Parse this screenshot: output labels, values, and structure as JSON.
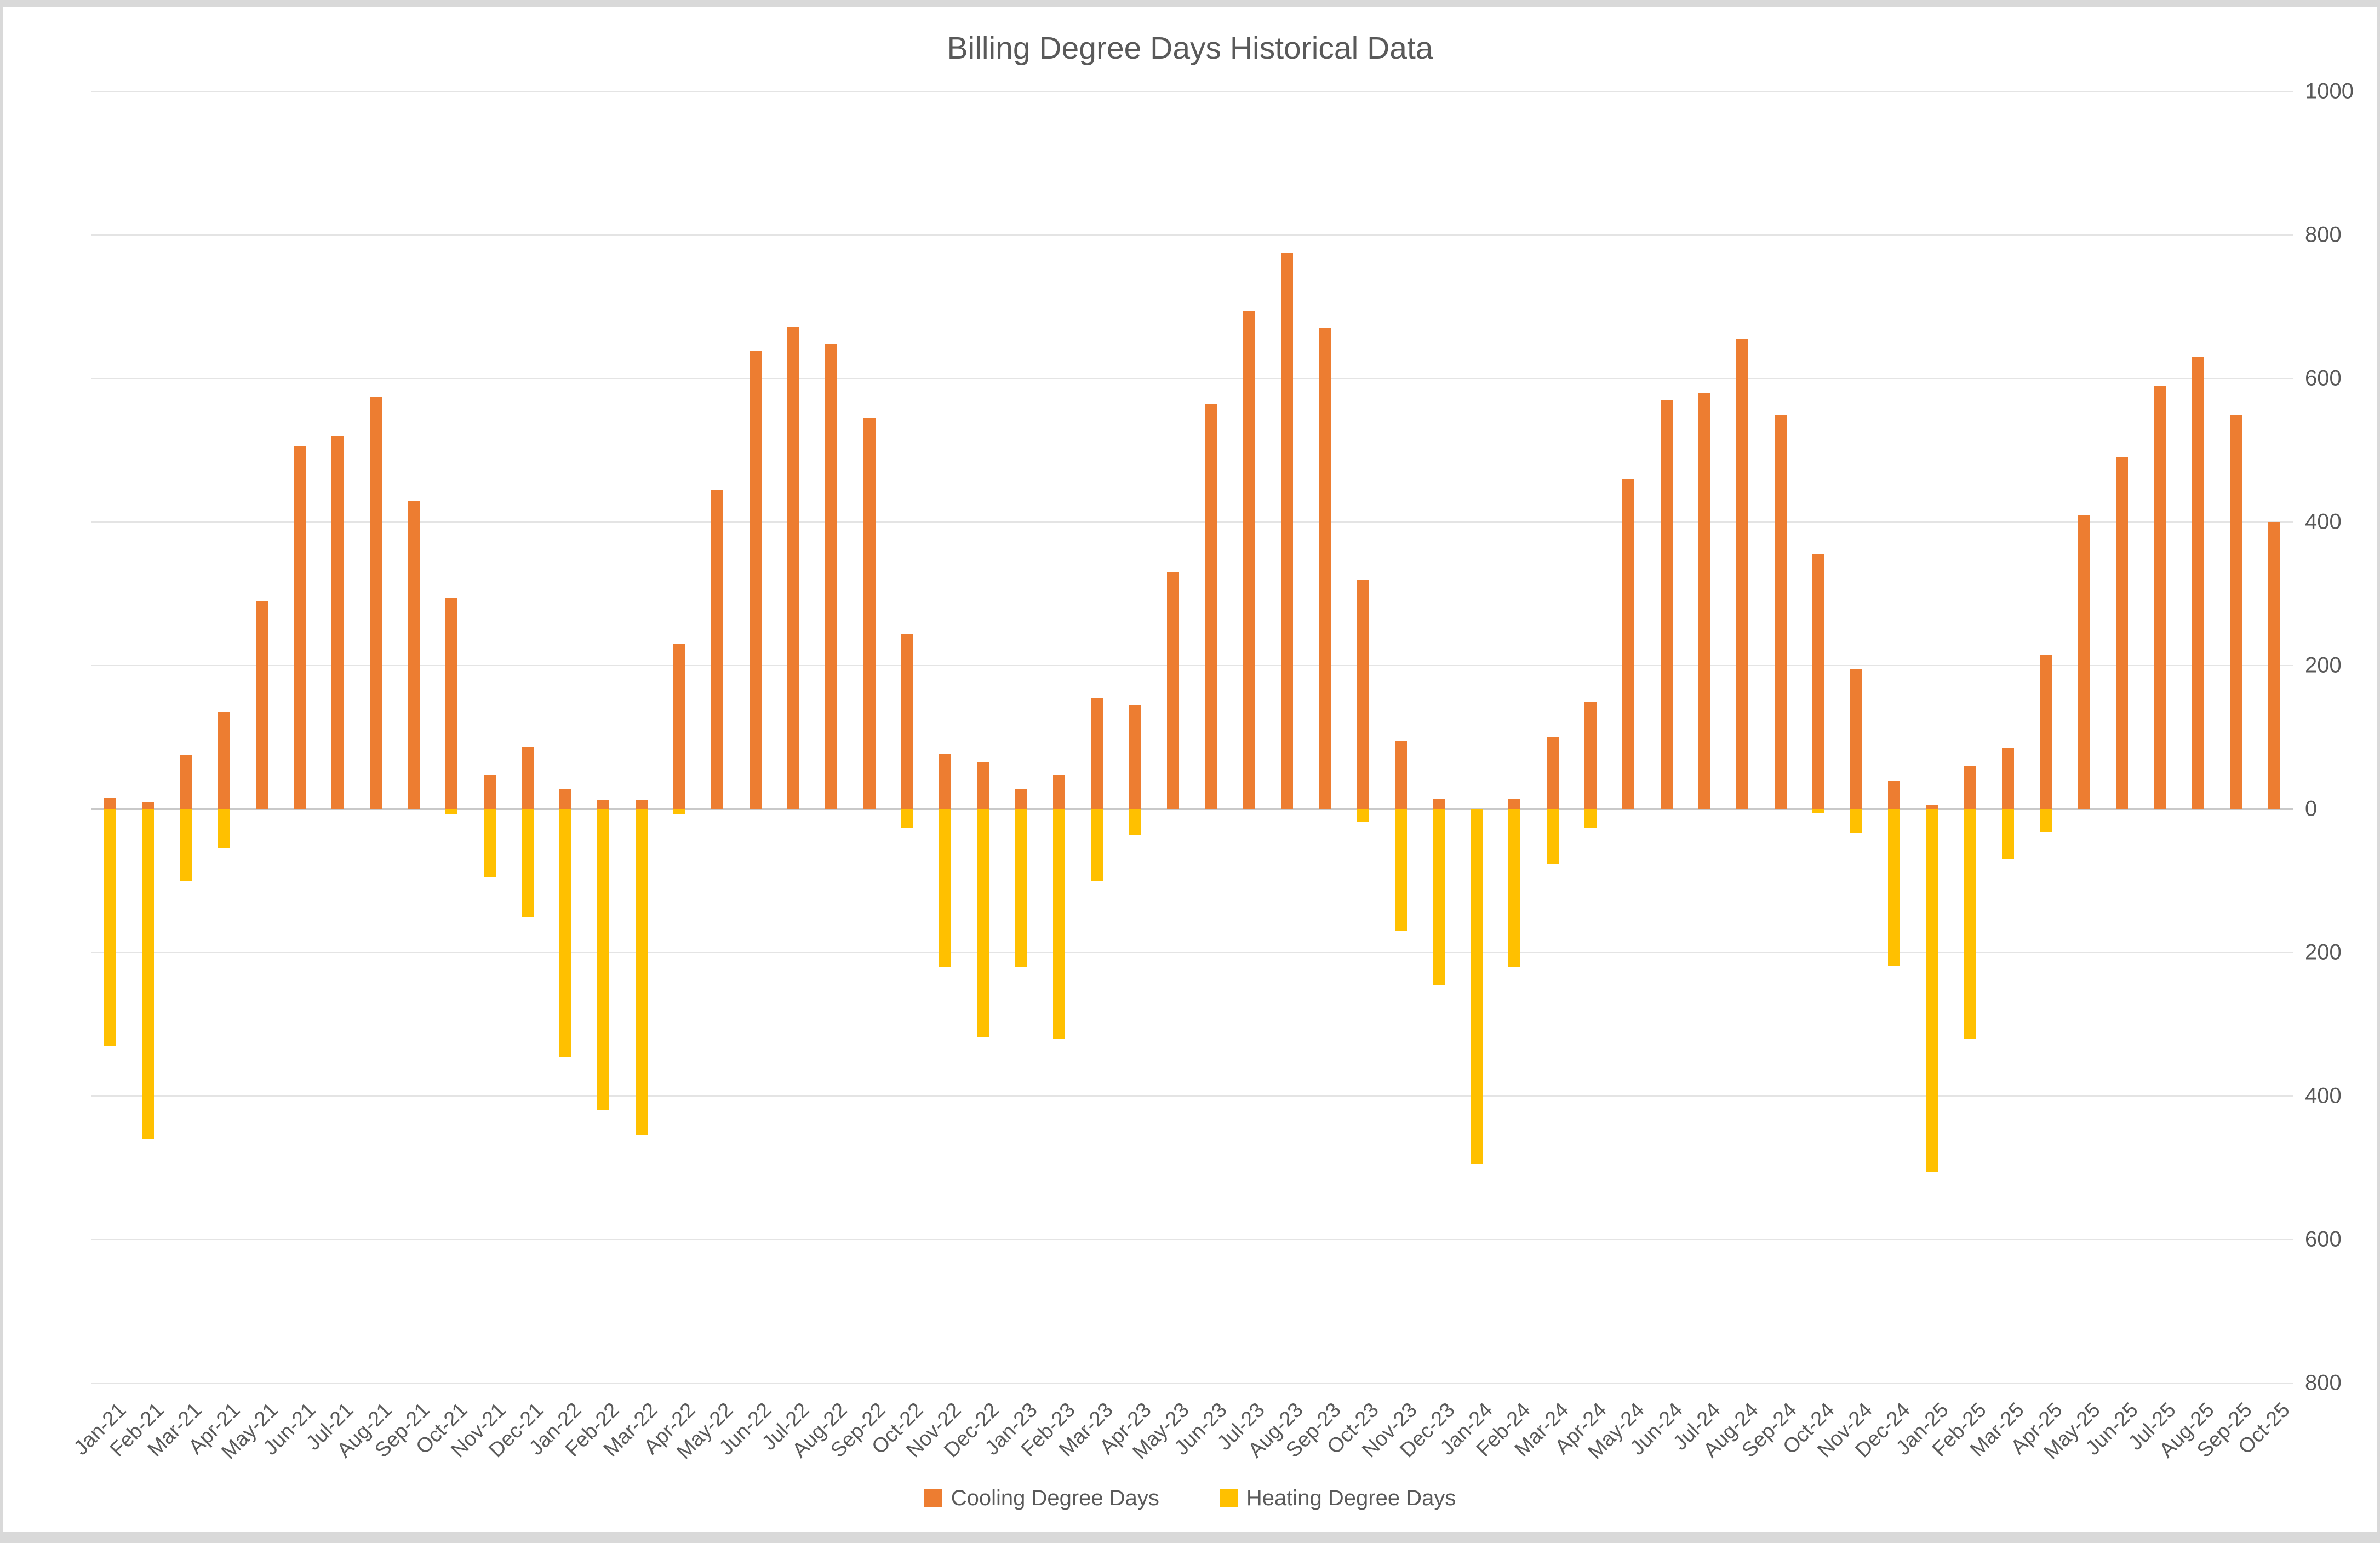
{
  "chart_data": {
    "type": "bar",
    "title": "Billing Degree Days Historical Data",
    "categories": [
      "Jan-21",
      "Feb-21",
      "Mar-21",
      "Apr-21",
      "May-21",
      "Jun-21",
      "Jul-21",
      "Aug-21",
      "Sep-21",
      "Oct-21",
      "Nov-21",
      "Dec-21",
      "Jan-22",
      "Feb-22",
      "Mar-22",
      "Apr-22",
      "May-22",
      "Jun-22",
      "Jul-22",
      "Aug-22",
      "Sep-22",
      "Oct-22",
      "Nov-22",
      "Dec-22",
      "Jan-23",
      "Feb-23",
      "Mar-23",
      "Apr-23",
      "May-23",
      "Jun-23",
      "Jul-23",
      "Aug-23",
      "Sep-23",
      "Oct-23",
      "Nov-23",
      "Dec-23",
      "Jan-24",
      "Feb-24",
      "Mar-24",
      "Apr-24",
      "May-24",
      "Jun-24",
      "Jul-24",
      "Aug-24",
      "Sep-24",
      "Oct-24",
      "Nov-24",
      "Dec-24",
      "Jan-25",
      "Feb-25",
      "Mar-25",
      "Apr-25",
      "May-25",
      "Jun-25",
      "Jul-25",
      "Aug-25",
      "Sep-25",
      "Oct-25"
    ],
    "series": [
      {
        "name": "Cooling Degree Days",
        "color": "#ED7D31",
        "values": [
          15,
          10,
          75,
          135,
          290,
          505,
          520,
          575,
          430,
          295,
          47,
          87,
          28,
          12,
          12,
          230,
          445,
          638,
          672,
          648,
          545,
          244,
          77,
          65,
          28,
          47,
          155,
          145,
          330,
          565,
          695,
          775,
          670,
          320,
          95,
          14,
          0,
          14,
          100,
          150,
          460,
          570,
          580,
          655,
          550,
          355,
          195,
          40,
          5,
          60,
          85,
          215,
          410,
          490,
          590,
          630,
          550,
          400
        ]
      },
      {
        "name": "Heating Degree Days",
        "color": "#FFC000",
        "values": [
          -330,
          -460,
          -100,
          -55,
          0,
          0,
          0,
          0,
          0,
          -8,
          -95,
          -150,
          -345,
          -420,
          -455,
          -8,
          0,
          0,
          0,
          0,
          0,
          -27,
          -220,
          -318,
          -220,
          -320,
          -100,
          -36,
          0,
          0,
          0,
          0,
          0,
          -18,
          -170,
          -245,
          -495,
          -220,
          -77,
          -27,
          0,
          0,
          0,
          0,
          0,
          -5,
          -33,
          -218,
          -505,
          -320,
          -70,
          -32,
          0,
          0,
          0,
          0,
          0,
          0
        ]
      }
    ],
    "y_axis": {
      "min": -800,
      "max": 1000,
      "step": 200,
      "side": "right",
      "labels_absolute_value": true,
      "tick_labels_top_to_bottom": [
        "1000",
        "800",
        "600",
        "400",
        "200",
        "0",
        "200",
        "400",
        "600",
        "800"
      ]
    },
    "x_axis": {
      "label_rotation_deg": 45
    },
    "grid": true,
    "legend_position": "bottom"
  },
  "colors": {
    "cooling": "#ED7D31",
    "heating": "#FFC000",
    "gridline": "#e4e4e4",
    "zero_line": "#c9c9c9",
    "text": "#595959",
    "background": "#ffffff",
    "frame": "#d9d9d9"
  }
}
